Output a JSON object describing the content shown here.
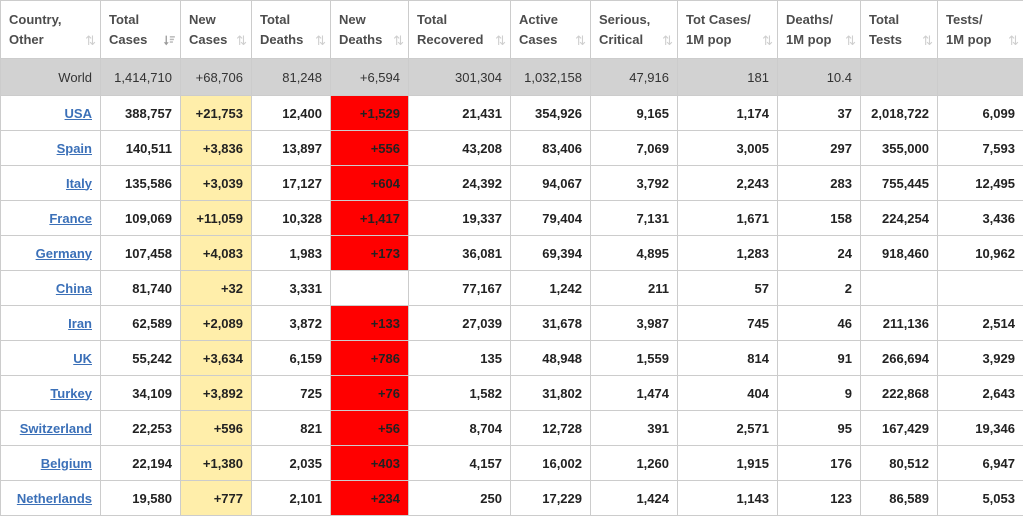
{
  "table": {
    "columns": [
      {
        "key": "country",
        "lines": [
          "Country,",
          "Other"
        ],
        "sort": "none"
      },
      {
        "key": "total_cases",
        "lines": [
          "Total",
          "Cases"
        ],
        "sort": "desc"
      },
      {
        "key": "new_cases",
        "lines": [
          "New",
          "Cases"
        ],
        "sort": "none"
      },
      {
        "key": "total_deaths",
        "lines": [
          "Total",
          "Deaths"
        ],
        "sort": "none"
      },
      {
        "key": "new_deaths",
        "lines": [
          "New",
          "Deaths"
        ],
        "sort": "none"
      },
      {
        "key": "total_recovered",
        "lines": [
          "Total",
          "Recovered"
        ],
        "sort": "none"
      },
      {
        "key": "active_cases",
        "lines": [
          "Active",
          "Cases"
        ],
        "sort": "none"
      },
      {
        "key": "serious_critical",
        "lines": [
          "Serious,",
          "Critical"
        ],
        "sort": "none"
      },
      {
        "key": "tot_cases_1m",
        "lines": [
          "Tot Cases/",
          "1M pop"
        ],
        "sort": "none"
      },
      {
        "key": "deaths_1m",
        "lines": [
          "Deaths/",
          "1M pop"
        ],
        "sort": "none"
      },
      {
        "key": "total_tests",
        "lines": [
          "Total",
          "Tests"
        ],
        "sort": "none"
      },
      {
        "key": "tests_1m",
        "lines": [
          "Tests/",
          "1M pop"
        ],
        "sort": "none"
      }
    ],
    "world_row": {
      "country": "World",
      "total_cases": "1,414,710",
      "new_cases": "+68,706",
      "total_deaths": "81,248",
      "new_deaths": "+6,594",
      "total_recovered": "301,304",
      "active_cases": "1,032,158",
      "serious_critical": "47,916",
      "tot_cases_1m": "181",
      "deaths_1m": "10.4",
      "total_tests": "",
      "tests_1m": ""
    },
    "rows": [
      {
        "country": "USA",
        "total_cases": "388,757",
        "new_cases": "+21,753",
        "total_deaths": "12,400",
        "new_deaths": "+1,529",
        "total_recovered": "21,431",
        "active_cases": "354,926",
        "serious_critical": "9,165",
        "tot_cases_1m": "1,174",
        "deaths_1m": "37",
        "total_tests": "2,018,722",
        "tests_1m": "6,099"
      },
      {
        "country": "Spain",
        "total_cases": "140,511",
        "new_cases": "+3,836",
        "total_deaths": "13,897",
        "new_deaths": "+556",
        "total_recovered": "43,208",
        "active_cases": "83,406",
        "serious_critical": "7,069",
        "tot_cases_1m": "3,005",
        "deaths_1m": "297",
        "total_tests": "355,000",
        "tests_1m": "7,593"
      },
      {
        "country": "Italy",
        "total_cases": "135,586",
        "new_cases": "+3,039",
        "total_deaths": "17,127",
        "new_deaths": "+604",
        "total_recovered": "24,392",
        "active_cases": "94,067",
        "serious_critical": "3,792",
        "tot_cases_1m": "2,243",
        "deaths_1m": "283",
        "total_tests": "755,445",
        "tests_1m": "12,495"
      },
      {
        "country": "France",
        "total_cases": "109,069",
        "new_cases": "+11,059",
        "total_deaths": "10,328",
        "new_deaths": "+1,417",
        "total_recovered": "19,337",
        "active_cases": "79,404",
        "serious_critical": "7,131",
        "tot_cases_1m": "1,671",
        "deaths_1m": "158",
        "total_tests": "224,254",
        "tests_1m": "3,436"
      },
      {
        "country": "Germany",
        "total_cases": "107,458",
        "new_cases": "+4,083",
        "total_deaths": "1,983",
        "new_deaths": "+173",
        "total_recovered": "36,081",
        "active_cases": "69,394",
        "serious_critical": "4,895",
        "tot_cases_1m": "1,283",
        "deaths_1m": "24",
        "total_tests": "918,460",
        "tests_1m": "10,962"
      },
      {
        "country": "China",
        "total_cases": "81,740",
        "new_cases": "+32",
        "total_deaths": "3,331",
        "new_deaths": "",
        "total_recovered": "77,167",
        "active_cases": "1,242",
        "serious_critical": "211",
        "tot_cases_1m": "57",
        "deaths_1m": "2",
        "total_tests": "",
        "tests_1m": ""
      },
      {
        "country": "Iran",
        "total_cases": "62,589",
        "new_cases": "+2,089",
        "total_deaths": "3,872",
        "new_deaths": "+133",
        "total_recovered": "27,039",
        "active_cases": "31,678",
        "serious_critical": "3,987",
        "tot_cases_1m": "745",
        "deaths_1m": "46",
        "total_tests": "211,136",
        "tests_1m": "2,514"
      },
      {
        "country": "UK",
        "total_cases": "55,242",
        "new_cases": "+3,634",
        "total_deaths": "6,159",
        "new_deaths": "+786",
        "total_recovered": "135",
        "active_cases": "48,948",
        "serious_critical": "1,559",
        "tot_cases_1m": "814",
        "deaths_1m": "91",
        "total_tests": "266,694",
        "tests_1m": "3,929"
      },
      {
        "country": "Turkey",
        "total_cases": "34,109",
        "new_cases": "+3,892",
        "total_deaths": "725",
        "new_deaths": "+76",
        "total_recovered": "1,582",
        "active_cases": "31,802",
        "serious_critical": "1,474",
        "tot_cases_1m": "404",
        "deaths_1m": "9",
        "total_tests": "222,868",
        "tests_1m": "2,643"
      },
      {
        "country": "Switzerland",
        "total_cases": "22,253",
        "new_cases": "+596",
        "total_deaths": "821",
        "new_deaths": "+56",
        "total_recovered": "8,704",
        "active_cases": "12,728",
        "serious_critical": "391",
        "tot_cases_1m": "2,571",
        "deaths_1m": "95",
        "total_tests": "167,429",
        "tests_1m": "19,346"
      },
      {
        "country": "Belgium",
        "total_cases": "22,194",
        "new_cases": "+1,380",
        "total_deaths": "2,035",
        "new_deaths": "+403",
        "total_recovered": "4,157",
        "active_cases": "16,002",
        "serious_critical": "1,260",
        "tot_cases_1m": "1,915",
        "deaths_1m": "176",
        "total_tests": "80,512",
        "tests_1m": "6,947"
      },
      {
        "country": "Netherlands",
        "total_cases": "19,580",
        "new_cases": "+777",
        "total_deaths": "2,101",
        "new_deaths": "+234",
        "total_recovered": "250",
        "active_cases": "17,229",
        "serious_critical": "1,424",
        "tot_cases_1m": "1,143",
        "deaths_1m": "123",
        "total_tests": "86,589",
        "tests_1m": "5,053"
      }
    ]
  },
  "icons": {
    "sort_toggle": "⇅",
    "sort_active": "sort-amount-desc"
  },
  "colors": {
    "new_cases_bg": "#FFEEAA",
    "new_deaths_bg": "#FF0000",
    "new_deaths_text": "#FFFFFF",
    "world_row_bg": "#D2D2D2",
    "link": "#3B70B8",
    "border": "#CCCCCC",
    "header_text": "#4D4D4D"
  }
}
